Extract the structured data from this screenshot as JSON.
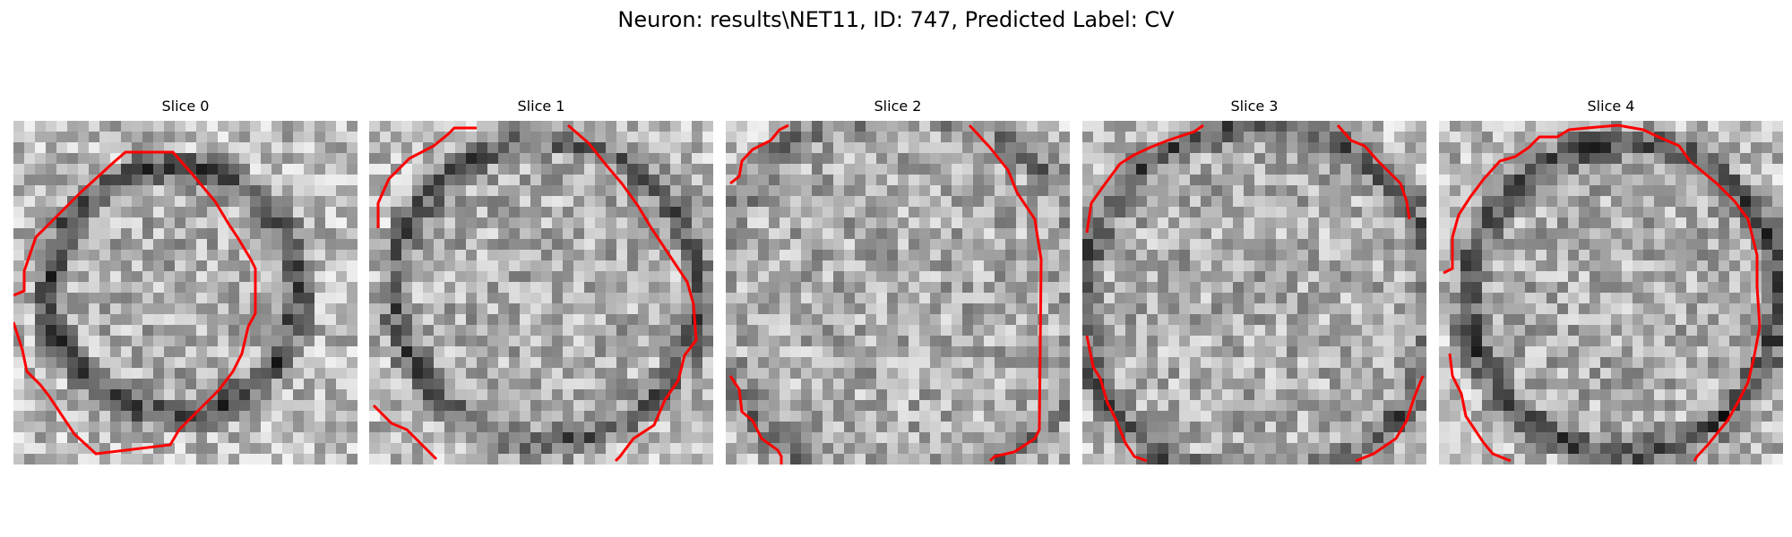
{
  "figure": {
    "title": "Neuron: results\\NET11, ID: 747, Predicted Label: CV"
  },
  "colors": {
    "contour": "#ff0000",
    "background": "#ffffff"
  },
  "panels": [
    {
      "title": "Slice 0"
    },
    {
      "title": "Slice 1"
    },
    {
      "title": "Slice 2"
    },
    {
      "title": "Slice 3"
    },
    {
      "title": "Slice 4"
    }
  ]
}
